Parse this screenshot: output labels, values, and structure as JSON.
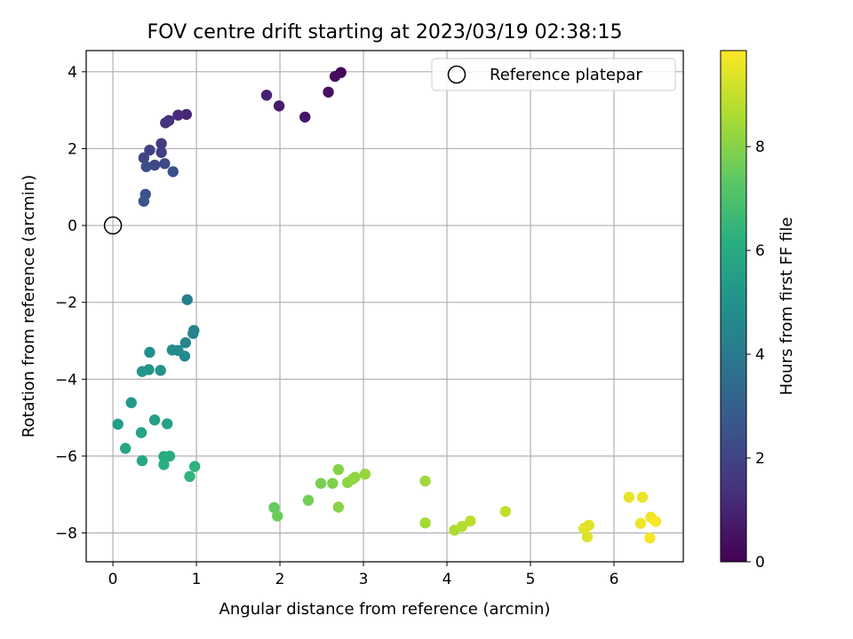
{
  "chart_data": {
    "type": "scatter",
    "title": "FOV centre drift starting at 2023/03/19 02:38:15",
    "xlabel": "Angular distance from reference (arcmin)",
    "ylabel": "Rotation from reference (arcmin)",
    "xlim": [
      -0.32,
      6.83
    ],
    "ylim": [
      -8.75,
      4.55
    ],
    "x_ticks": [
      0,
      1,
      2,
      3,
      4,
      5,
      6
    ],
    "x_tick_labels": [
      "0",
      "1",
      "2",
      "3",
      "4",
      "5",
      "6"
    ],
    "y_ticks": [
      4,
      2,
      0,
      -2,
      -4,
      -6,
      -8
    ],
    "y_tick_labels": [
      "4",
      "2",
      "0",
      "−2",
      "−4",
      "−6",
      "−8"
    ],
    "grid": true,
    "legend": {
      "placement": "top-right",
      "entries": [
        {
          "label": "Reference platepar",
          "marker": "open-circle"
        }
      ]
    },
    "reference_point": {
      "x": 0,
      "y": 0
    },
    "colorbar": {
      "label": "Hours from first FF file",
      "colormap": "viridis",
      "range": [
        0,
        9.85
      ],
      "ticks": [
        0,
        2,
        4,
        6,
        8
      ],
      "tick_labels": [
        "0",
        "2",
        "4",
        "6",
        "8"
      ]
    },
    "series": [
      {
        "marker": "filled-circle",
        "x": [
          2.73,
          2.66,
          2.58,
          2.3,
          1.99,
          1.84,
          0.88,
          0.78,
          0.67,
          0.63,
          0.58,
          0.58,
          0.44,
          0.37,
          0.5,
          0.62,
          0.4,
          0.72,
          0.39,
          0.37,
          0.89,
          0.97,
          0.96,
          0.87,
          0.86,
          0.78,
          0.71,
          0.44,
          0.57,
          0.43,
          0.35,
          0.22,
          0.06,
          0.5,
          0.65,
          0.34,
          0.15,
          0.35,
          0.61,
          0.68,
          0.61,
          0.98,
          0.92,
          1.93,
          1.97,
          2.34,
          2.49,
          2.63,
          2.7,
          2.7,
          2.81,
          2.87,
          2.9,
          3.02,
          3.74,
          3.74,
          4.09,
          4.18,
          4.28,
          4.7,
          5.64,
          5.68,
          5.7,
          5.65,
          6.18,
          6.34,
          6.32,
          6.44,
          6.43,
          6.5
        ],
        "y": [
          3.98,
          3.88,
          3.47,
          2.82,
          3.11,
          3.39,
          2.89,
          2.87,
          2.73,
          2.67,
          2.13,
          1.9,
          1.96,
          1.76,
          1.57,
          1.61,
          1.53,
          1.4,
          0.81,
          0.63,
          -1.93,
          -2.73,
          -2.81,
          -3.05,
          -3.4,
          -3.25,
          -3.24,
          -3.3,
          -3.77,
          -3.75,
          -3.8,
          -4.61,
          -5.17,
          -5.06,
          -5.16,
          -5.39,
          -5.8,
          -6.12,
          -6.01,
          -6.0,
          -6.22,
          -6.27,
          -6.53,
          -7.34,
          -7.56,
          -7.15,
          -6.71,
          -6.71,
          -6.35,
          -7.33,
          -6.69,
          -6.6,
          -6.55,
          -6.47,
          -6.65,
          -7.74,
          -7.93,
          -7.83,
          -7.69,
          -7.44,
          -7.88,
          -8.1,
          -7.8,
          -7.87,
          -7.07,
          -7.07,
          -7.75,
          -7.59,
          -8.13,
          -7.7
        ],
        "hours": [
          0.15,
          0.3,
          0.45,
          0.6,
          0.75,
          0.9,
          1.05,
          1.2,
          1.35,
          1.5,
          1.65,
          1.8,
          1.9,
          2.0,
          2.1,
          2.2,
          2.3,
          2.4,
          2.5,
          2.6,
          4.2,
          4.3,
          4.4,
          4.5,
          4.6,
          4.7,
          4.8,
          4.9,
          5.0,
          5.1,
          5.2,
          5.3,
          5.4,
          5.5,
          5.6,
          5.7,
          5.8,
          5.9,
          6.0,
          6.1,
          6.2,
          6.3,
          6.4,
          7.5,
          7.6,
          7.7,
          7.8,
          7.9,
          8.0,
          8.05,
          8.1,
          8.15,
          8.2,
          8.25,
          8.4,
          8.5,
          8.6,
          8.7,
          8.8,
          8.9,
          9.3,
          9.35,
          9.4,
          9.45,
          9.5,
          9.55,
          9.6,
          9.65,
          9.7,
          9.75
        ]
      }
    ]
  }
}
